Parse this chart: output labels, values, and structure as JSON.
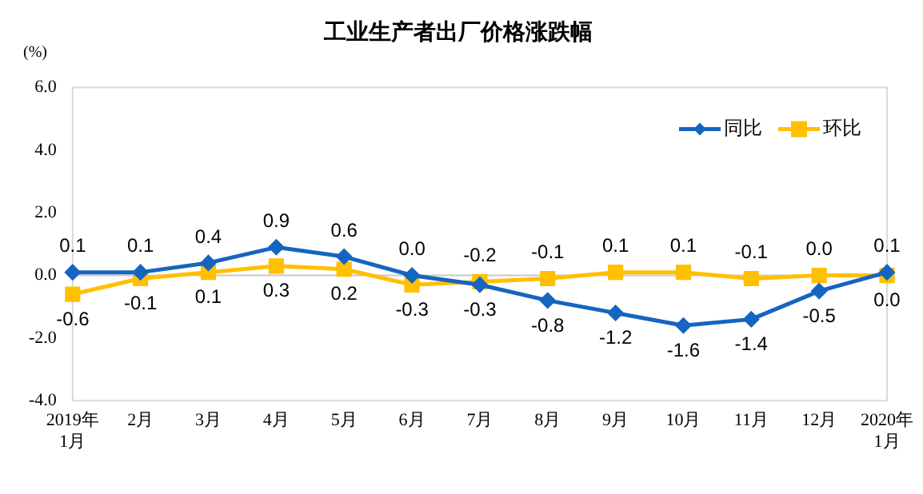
{
  "chart_data": {
    "type": "line",
    "title": "工业生产者出厂价格涨跌幅",
    "ylabel": "(%)",
    "categories": [
      "2019年\n1月",
      "2月",
      "3月",
      "4月",
      "5月",
      "6月",
      "7月",
      "8月",
      "9月",
      "10月",
      "11月",
      "12月",
      "2020年\n1月"
    ],
    "series": [
      {
        "name": "同比",
        "color": "#1565c0",
        "marker": "diamond",
        "values": [
          0.1,
          0.1,
          0.4,
          0.9,
          0.6,
          0.0,
          -0.3,
          -0.8,
          -1.2,
          -1.6,
          -1.4,
          -0.5,
          0.1
        ],
        "value_labels": [
          "0.1",
          "0.1",
          "0.4",
          "0.9",
          "0.6",
          "0.0",
          "-0.3",
          "-0.8",
          "-1.2",
          "-1.6",
          "-1.4",
          "-0.5",
          "0.1"
        ]
      },
      {
        "name": "环比",
        "color": "#ffc000",
        "marker": "square",
        "values": [
          -0.6,
          -0.1,
          0.1,
          0.3,
          0.2,
          -0.3,
          -0.2,
          -0.1,
          0.1,
          0.1,
          -0.1,
          0.0,
          0.0
        ],
        "value_labels": [
          "-0.6",
          "-0.1",
          "0.1",
          "0.3",
          "0.2",
          "-0.3",
          "-0.2",
          "-0.1",
          "0.1",
          "0.1",
          "-0.1",
          "0.0",
          "0.0"
        ]
      }
    ],
    "ylim": [
      -4,
      6
    ],
    "yticks": [
      {
        "value": -4,
        "label": "-4.0"
      },
      {
        "value": -2,
        "label": "-2.0"
      },
      {
        "value": 0,
        "label": "0.0"
      },
      {
        "value": 2,
        "label": "2.0"
      },
      {
        "value": 4,
        "label": "4.0"
      },
      {
        "value": 6,
        "label": "6.0"
      }
    ],
    "ref_lines": [
      {
        "axis": "y",
        "value": 0,
        "color": "#c8c8c8"
      }
    ],
    "grid": false,
    "legend": "top right",
    "line_style": "solid"
  }
}
